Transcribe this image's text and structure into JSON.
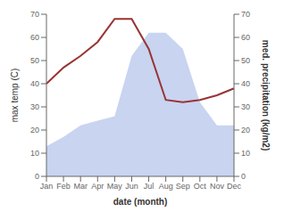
{
  "chart_data": {
    "type": "line",
    "categories": [
      "Jan",
      "Feb",
      "Mar",
      "Apr",
      "May",
      "Jun",
      "Jul",
      "Aug",
      "Sep",
      "Oct",
      "Nov",
      "Dec"
    ],
    "xlabel": "date (month)",
    "ylabel": "max temp (C)",
    "y2label": "med. precipitation (kg/m2)",
    "ylim": [
      0,
      70
    ],
    "yticks": [
      0,
      10,
      20,
      30,
      40,
      50,
      60,
      70
    ],
    "y2lim": [
      0,
      70
    ],
    "y2ticks": [
      0,
      10,
      20,
      30,
      40,
      50,
      60,
      70
    ],
    "grid": false,
    "series": [
      {
        "type": "area",
        "axis": "y2",
        "color": "#c8d4f0",
        "values": [
          13,
          17,
          22,
          24,
          26,
          52,
          62,
          62,
          55,
          32,
          22,
          22
        ]
      },
      {
        "type": "line",
        "color": "#993333",
        "values": [
          40,
          47,
          52,
          58,
          68,
          68,
          55,
          33,
          32,
          33,
          35,
          38
        ]
      }
    ]
  }
}
